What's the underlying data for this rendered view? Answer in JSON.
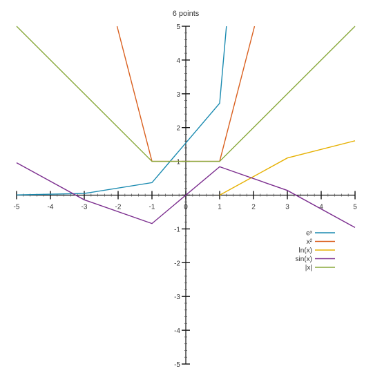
{
  "chart_data": {
    "type": "line",
    "title": "6 points",
    "xlabel": "",
    "ylabel": "",
    "xlim": [
      -5,
      5
    ],
    "ylim": [
      -5,
      5
    ],
    "xticks": [
      "-5",
      "-4",
      "-3",
      "-2",
      "-1",
      "0",
      "1",
      "2",
      "3",
      "4",
      "5"
    ],
    "yticks": [
      "-5",
      "-4",
      "-3",
      "-2",
      "-1",
      "0",
      "1",
      "2",
      "3",
      "4",
      "5"
    ],
    "grid": false,
    "legend_position": "bottom-right",
    "series": [
      {
        "name": "eˣ",
        "color": "#1a8ab0",
        "x": [
          -5,
          -3,
          -1,
          1,
          1.2
        ],
        "y": [
          0.007,
          0.05,
          0.37,
          2.72,
          5
        ]
      },
      {
        "name": "x²",
        "color": "#d95f1e",
        "x": [
          -2.03,
          -1,
          1,
          2.03
        ],
        "y": [
          5,
          1,
          1,
          5
        ]
      },
      {
        "name": "ln(x)",
        "color": "#e6b000",
        "x": [
          1,
          3,
          5
        ],
        "y": [
          0,
          1.1,
          1.61
        ]
      },
      {
        "name": "sin(x)",
        "color": "#7b2d8e",
        "x": [
          -5,
          -3,
          -1,
          1,
          3,
          5
        ],
        "y": [
          0.96,
          -0.14,
          -0.84,
          0.84,
          0.14,
          -0.96
        ]
      },
      {
        "name": "|x|",
        "color": "#88a83a",
        "x": [
          -5,
          -3,
          -1,
          1,
          3,
          5
        ],
        "y": [
          5,
          3,
          1,
          1,
          3,
          5
        ]
      }
    ]
  }
}
